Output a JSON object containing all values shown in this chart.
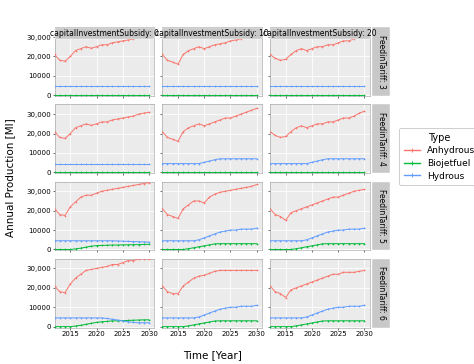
{
  "years": [
    2012,
    2013,
    2014,
    2015,
    2016,
    2017,
    2018,
    2019,
    2020,
    2021,
    2022,
    2023,
    2024,
    2025,
    2026,
    2027,
    2028,
    2029,
    2030
  ],
  "col_labels": [
    "capitalInvestmentSubsidy: 0",
    "capitalInvestmentSubsidy: 10",
    "capitalInvestmentSubsidy: 20"
  ],
  "row_labels": [
    "FeedinTariff: 3",
    "FeedinTariff: 4",
    "FeedinTariff: 5",
    "FeedinTariff: 6"
  ],
  "type_colors": {
    "Anhydrous": "#F8766D",
    "Biojetfuel": "#00BA38",
    "Hydrous": "#619CFF"
  },
  "type_labels": [
    "Anhydrous",
    "Biojetfuel",
    "Hydrous"
  ],
  "legend_title": "Type",
  "xlabel": "Time [Year]",
  "ylabel": "Annual Production [Ml]",
  "data": {
    "r0c0": {
      "Anhydrous": [
        21000,
        18000,
        17500,
        20000,
        23000,
        24000,
        25000,
        24200,
        25000,
        26000,
        26000,
        27000,
        27500,
        28000,
        28500,
        29000,
        30000,
        30500,
        31000
      ],
      "Biojetfuel": [
        0,
        0,
        0,
        0,
        0,
        0,
        0,
        0,
        0,
        0,
        0,
        0,
        0,
        0,
        0,
        0,
        0,
        0,
        0
      ],
      "Hydrous": [
        4500,
        4500,
        4500,
        4500,
        4500,
        4500,
        4500,
        4500,
        4500,
        4500,
        4500,
        4500,
        4500,
        4500,
        4500,
        4500,
        4500,
        4500,
        4500
      ]
    },
    "r0c1": {
      "Anhydrous": [
        21000,
        18000,
        17000,
        16000,
        21000,
        23000,
        24000,
        25000,
        24000,
        25000,
        26000,
        26500,
        27000,
        28000,
        28500,
        29000,
        30000,
        31000,
        32000
      ],
      "Biojetfuel": [
        0,
        0,
        0,
        0,
        0,
        0,
        0,
        0,
        0,
        0,
        0,
        0,
        0,
        0,
        0,
        0,
        0,
        0,
        0
      ],
      "Hydrous": [
        4500,
        4500,
        4500,
        4500,
        4500,
        4500,
        4500,
        4500,
        4500,
        4500,
        4500,
        4500,
        4500,
        4500,
        4500,
        4500,
        4500,
        4500,
        4500
      ]
    },
    "r0c2": {
      "Anhydrous": [
        21000,
        19000,
        18000,
        18500,
        21000,
        23000,
        24000,
        23000,
        24000,
        25000,
        25000,
        26000,
        26000,
        27000,
        28000,
        28000,
        29000,
        30500,
        31500
      ],
      "Biojetfuel": [
        0,
        0,
        0,
        0,
        0,
        0,
        0,
        0,
        0,
        0,
        0,
        0,
        0,
        0,
        0,
        0,
        0,
        0,
        0
      ],
      "Hydrous": [
        4500,
        4500,
        4500,
        4500,
        4500,
        4500,
        4500,
        4500,
        4500,
        4500,
        4500,
        4500,
        4500,
        4500,
        4500,
        4500,
        4500,
        4500,
        4500
      ]
    },
    "r1c0": {
      "Anhydrous": [
        21000,
        18000,
        17500,
        20000,
        23000,
        24000,
        25000,
        24200,
        25000,
        26000,
        26000,
        27000,
        27500,
        28000,
        28500,
        29000,
        30000,
        30500,
        31000
      ],
      "Biojetfuel": [
        0,
        0,
        0,
        0,
        0,
        0,
        0,
        0,
        0,
        0,
        0,
        0,
        0,
        0,
        0,
        0,
        0,
        0,
        0
      ],
      "Hydrous": [
        4500,
        4500,
        4500,
        4500,
        4500,
        4500,
        4500,
        4500,
        4500,
        4500,
        4500,
        4500,
        4500,
        4500,
        4500,
        4500,
        4500,
        4500,
        4500
      ]
    },
    "r1c1": {
      "Anhydrous": [
        21000,
        18000,
        17000,
        16000,
        21000,
        23000,
        24000,
        25000,
        24000,
        25000,
        26000,
        27000,
        28000,
        28000,
        29000,
        30000,
        31000,
        32000,
        33000
      ],
      "Biojetfuel": [
        0,
        0,
        0,
        0,
        0,
        0,
        0,
        0,
        0,
        0,
        0,
        0,
        0,
        0,
        0,
        0,
        0,
        0,
        0
      ],
      "Hydrous": [
        4500,
        4500,
        4500,
        4500,
        4500,
        4500,
        4500,
        4500,
        5200,
        5800,
        6500,
        7000,
        7000,
        7000,
        7000,
        7000,
        7000,
        7000,
        7000
      ]
    },
    "r1c2": {
      "Anhydrous": [
        21000,
        19000,
        18000,
        18500,
        21000,
        23000,
        24000,
        23000,
        24000,
        25000,
        25000,
        26000,
        26000,
        27000,
        28000,
        28000,
        29000,
        30500,
        31500
      ],
      "Biojetfuel": [
        0,
        0,
        0,
        0,
        0,
        0,
        0,
        0,
        0,
        0,
        0,
        0,
        0,
        0,
        0,
        0,
        0,
        0,
        0
      ],
      "Hydrous": [
        4500,
        4500,
        4500,
        4500,
        4500,
        4500,
        4500,
        4500,
        5200,
        5800,
        6500,
        7000,
        7000,
        7000,
        7000,
        7000,
        7000,
        7000,
        7000
      ]
    },
    "r2c0": {
      "Anhydrous": [
        21000,
        18000,
        17500,
        22000,
        24500,
        27000,
        28000,
        28000,
        29000,
        30000,
        30500,
        31000,
        31500,
        32000,
        32500,
        33000,
        33500,
        34000,
        34500
      ],
      "Biojetfuel": [
        0,
        0,
        0,
        0,
        300,
        700,
        1200,
        1700,
        2000,
        2100,
        2200,
        2300,
        2300,
        2400,
        2400,
        2500,
        2500,
        2600,
        2700
      ],
      "Hydrous": [
        4500,
        4500,
        4500,
        4500,
        4500,
        4500,
        4500,
        4500,
        4500,
        4500,
        4500,
        4500,
        4400,
        4300,
        4200,
        4100,
        4000,
        3900,
        3800
      ]
    },
    "r2c1": {
      "Anhydrous": [
        21000,
        18000,
        17000,
        16000,
        21000,
        23000,
        25000,
        25000,
        24000,
        27000,
        28500,
        29500,
        30000,
        30500,
        31000,
        31500,
        32000,
        32500,
        33500
      ],
      "Biojetfuel": [
        0,
        0,
        0,
        0,
        0,
        400,
        900,
        1400,
        1900,
        2400,
        2900,
        3000,
        3000,
        3000,
        3000,
        3000,
        3000,
        3000,
        3000
      ],
      "Hydrous": [
        4500,
        4500,
        4500,
        4500,
        4500,
        4500,
        4500,
        5000,
        6000,
        7000,
        8000,
        9000,
        9500,
        10000,
        10000,
        10500,
        10500,
        10500,
        11000
      ]
    },
    "r2c2": {
      "Anhydrous": [
        21000,
        18000,
        17000,
        15000,
        19000,
        20000,
        21000,
        22000,
        23000,
        24000,
        25000,
        26000,
        27000,
        27000,
        28000,
        29000,
        30000,
        30500,
        31000
      ],
      "Biojetfuel": [
        0,
        0,
        0,
        0,
        0,
        400,
        900,
        1400,
        1900,
        2400,
        2900,
        3000,
        3000,
        3000,
        3000,
        3000,
        3000,
        3000,
        3000
      ],
      "Hydrous": [
        4500,
        4500,
        4500,
        4500,
        4500,
        4500,
        4500,
        5000,
        6000,
        7000,
        8000,
        9000,
        9500,
        10000,
        10000,
        10500,
        10500,
        10500,
        11000
      ]
    },
    "r3c0": {
      "Anhydrous": [
        21000,
        18000,
        17500,
        22000,
        25000,
        27000,
        29000,
        29500,
        30000,
        30500,
        31000,
        32000,
        32000,
        33000,
        34000,
        34000,
        35000,
        35000,
        35000
      ],
      "Biojetfuel": [
        0,
        0,
        0,
        0,
        300,
        700,
        1200,
        1700,
        2200,
        2500,
        2700,
        3000,
        3000,
        3100,
        3200,
        3300,
        3400,
        3500,
        3500
      ],
      "Hydrous": [
        4500,
        4500,
        4500,
        4500,
        4500,
        4500,
        4500,
        4500,
        4500,
        4500,
        4200,
        3800,
        3400,
        3000,
        2500,
        2200,
        2000,
        2000,
        2000
      ]
    },
    "r3c1": {
      "Anhydrous": [
        21000,
        18000,
        17000,
        17000,
        21000,
        23000,
        25000,
        26000,
        26500,
        27500,
        28500,
        29000,
        29000,
        29000,
        29000,
        29000,
        29000,
        29000,
        29000
      ],
      "Biojetfuel": [
        0,
        0,
        0,
        0,
        0,
        400,
        900,
        1400,
        1900,
        2400,
        2900,
        3000,
        3000,
        3000,
        3000,
        3000,
        3000,
        3000,
        3000
      ],
      "Hydrous": [
        4500,
        4500,
        4500,
        4500,
        4500,
        4500,
        4500,
        5000,
        6000,
        7000,
        8000,
        9000,
        9500,
        10000,
        10000,
        10500,
        10500,
        10500,
        11000
      ]
    },
    "r3c2": {
      "Anhydrous": [
        21000,
        18000,
        17000,
        15000,
        19000,
        20000,
        21000,
        22000,
        23000,
        24000,
        25000,
        26000,
        27000,
        27000,
        28000,
        28000,
        28000,
        28500,
        29000
      ],
      "Biojetfuel": [
        0,
        0,
        0,
        0,
        0,
        400,
        900,
        1400,
        1900,
        2400,
        2900,
        3000,
        3000,
        3000,
        3000,
        3000,
        3000,
        3000,
        3000
      ],
      "Hydrous": [
        4500,
        4500,
        4500,
        4500,
        4500,
        4500,
        4500,
        5000,
        6000,
        7000,
        8000,
        9000,
        9500,
        10000,
        10000,
        10500,
        10500,
        10500,
        11000
      ]
    }
  },
  "ylim": [
    -500,
    35000
  ],
  "yticks_r0": [
    0,
    10000,
    20000,
    30000
  ],
  "yticks_r1": [
    0,
    10000,
    20000,
    30000
  ],
  "yticks_r2": [
    0,
    10000,
    20000,
    30000
  ],
  "yticks_r3": [
    0,
    10000,
    20000,
    30000
  ],
  "xticks": [
    2015,
    2020,
    2025,
    2030
  ],
  "background_color": "#FFFFFF",
  "panel_bg": "#EBEBEB",
  "grid_color": "#FFFFFF",
  "strip_bg": "#C8C8C8",
  "strip_text_size": 5.5,
  "axis_text_size": 5.0,
  "axis_label_size": 7.5,
  "legend_text_size": 6.5,
  "legend_title_size": 7.0
}
